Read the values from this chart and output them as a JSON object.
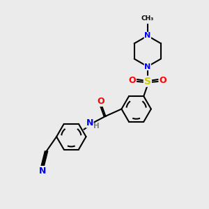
{
  "bg_color": "#ebebeb",
  "bond_color": "#000000",
  "N_color": "#0000ff",
  "O_color": "#ff0000",
  "S_color": "#cccc00",
  "H_color": "#7f7f7f",
  "line_width": 1.5,
  "figsize": [
    3.0,
    3.0
  ],
  "dpi": 100,
  "xlim": [
    0,
    10
  ],
  "ylim": [
    0,
    10
  ]
}
